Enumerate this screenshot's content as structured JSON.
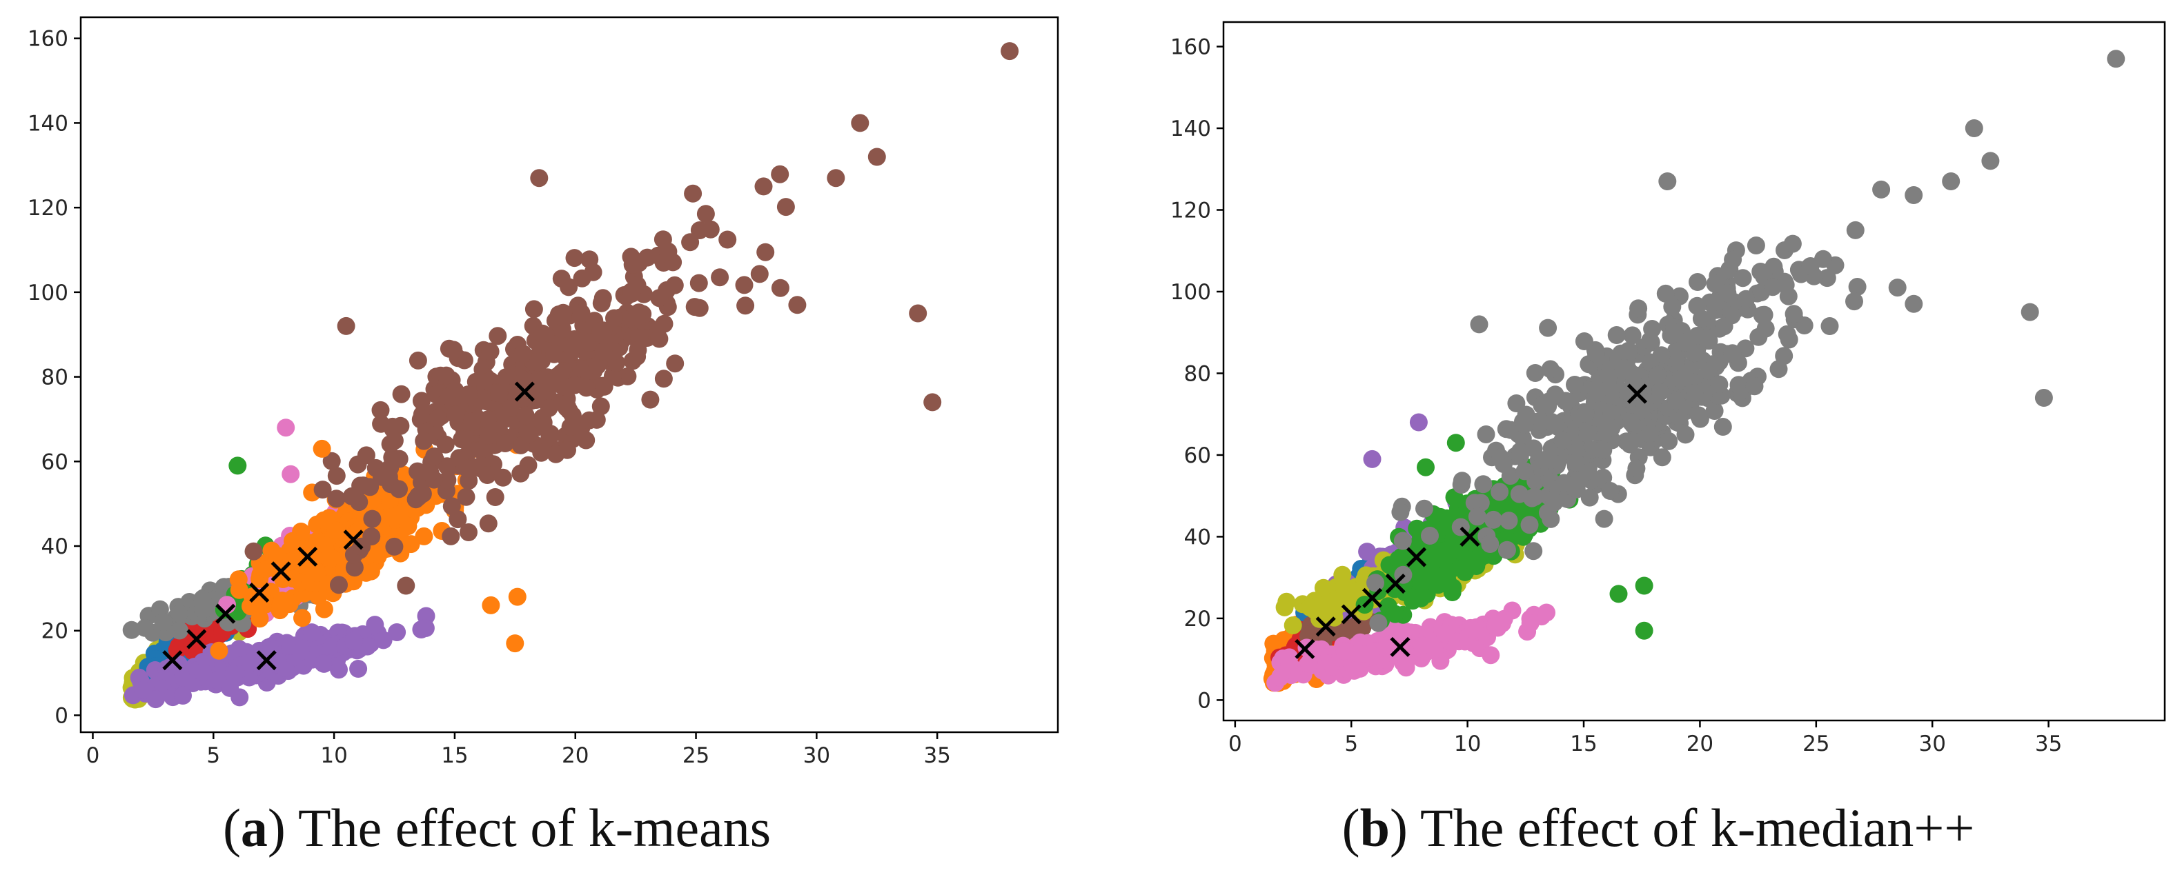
{
  "figure": {
    "captions": [
      {
        "letter": "a",
        "text": "The effect of k-means"
      },
      {
        "letter": "b",
        "text": "The effect of k-median++"
      }
    ]
  },
  "chart_data": [
    {
      "type": "scatter",
      "title": "",
      "xlabel": "",
      "ylabel": "",
      "xlim": [
        -0.5,
        40
      ],
      "ylim": [
        -4,
        165
      ],
      "xticks": [
        0,
        5,
        10,
        15,
        20,
        25,
        30,
        35
      ],
      "yticks": [
        0,
        20,
        40,
        60,
        80,
        100,
        120,
        140,
        160
      ],
      "grid": false,
      "legend": "none",
      "clusters": [
        {
          "name": "cluster-olive",
          "color": "#bcbd22",
          "center": [
            3.3,
            13
          ],
          "spread": [
            1.0,
            4.0
          ],
          "count": 220
        },
        {
          "name": "cluster-blue",
          "color": "#1f77b4",
          "center": [
            4.3,
            18
          ],
          "spread": [
            0.8,
            3.5
          ],
          "count": 120
        },
        {
          "name": "cluster-red",
          "color": "#d62728",
          "center": [
            5.6,
            24
          ],
          "spread": [
            0.9,
            4.0
          ],
          "count": 160
        },
        {
          "name": "cluster-purple",
          "color": "#9467bd",
          "center": [
            7.2,
            13
          ],
          "spread": [
            2.2,
            3.5
          ],
          "count": 280
        },
        {
          "name": "cluster-gray",
          "color": "#7f7f7f",
          "center": [
            6.9,
            29
          ],
          "spread": [
            1.8,
            4.0
          ],
          "count": 260
        },
        {
          "name": "cluster-green",
          "color": "#2ca02c",
          "center": [
            7.8,
            34
          ],
          "spread": [
            1.0,
            5.0
          ],
          "count": 80
        },
        {
          "name": "cluster-pink",
          "color": "#e377c2",
          "center": [
            8.9,
            37
          ],
          "spread": [
            1.2,
            6.0
          ],
          "count": 220
        },
        {
          "name": "cluster-orange",
          "color": "#ff7f0e",
          "center": [
            10.7,
            41.5
          ],
          "spread": [
            1.8,
            8.0
          ],
          "count": 380
        },
        {
          "name": "cluster-brown",
          "color": "#8c564b",
          "center": [
            17.9,
            76.5
          ],
          "spread": [
            3.8,
            17.0
          ],
          "count": 420
        }
      ],
      "outliers": [
        {
          "x": 38.0,
          "y": 157,
          "color": "#8c564b"
        },
        {
          "x": 34.8,
          "y": 74,
          "color": "#8c564b"
        },
        {
          "x": 34.2,
          "y": 95,
          "color": "#8c564b"
        },
        {
          "x": 31.8,
          "y": 140,
          "color": "#8c564b"
        },
        {
          "x": 32.5,
          "y": 132,
          "color": "#8c564b"
        },
        {
          "x": 30.8,
          "y": 127,
          "color": "#8c564b"
        },
        {
          "x": 29.2,
          "y": 97,
          "color": "#8c564b"
        },
        {
          "x": 28.5,
          "y": 101,
          "color": "#8c564b"
        },
        {
          "x": 27.8,
          "y": 125,
          "color": "#8c564b"
        },
        {
          "x": 18.5,
          "y": 127,
          "color": "#8c564b"
        },
        {
          "x": 10.5,
          "y": 92,
          "color": "#8c564b"
        },
        {
          "x": 17.5,
          "y": 17,
          "color": "#ff7f0e"
        },
        {
          "x": 17.6,
          "y": 28,
          "color": "#ff7f0e"
        },
        {
          "x": 16.5,
          "y": 26,
          "color": "#ff7f0e"
        },
        {
          "x": 9.5,
          "y": 63,
          "color": "#ff7f0e"
        },
        {
          "x": 8.0,
          "y": 68,
          "color": "#e377c2"
        },
        {
          "x": 8.2,
          "y": 57,
          "color": "#e377c2"
        },
        {
          "x": 6.0,
          "y": 59,
          "color": "#2ca02c"
        },
        {
          "x": 11.0,
          "y": 11,
          "color": "#9467bd"
        }
      ],
      "centroids": [
        {
          "x": 3.3,
          "y": 13
        },
        {
          "x": 4.3,
          "y": 18
        },
        {
          "x": 5.5,
          "y": 24
        },
        {
          "x": 6.9,
          "y": 29
        },
        {
          "x": 7.2,
          "y": 13
        },
        {
          "x": 7.8,
          "y": 34
        },
        {
          "x": 8.9,
          "y": 37.5
        },
        {
          "x": 10.8,
          "y": 41.5
        },
        {
          "x": 17.9,
          "y": 76.5
        }
      ]
    },
    {
      "type": "scatter",
      "title": "",
      "xlabel": "",
      "ylabel": "",
      "xlim": [
        -0.5,
        40
      ],
      "ylim": [
        -5,
        166
      ],
      "xticks": [
        0,
        5,
        10,
        15,
        20,
        25,
        30,
        35
      ],
      "yticks": [
        0,
        20,
        40,
        60,
        80,
        100,
        120,
        140,
        160
      ],
      "grid": false,
      "legend": "none",
      "clusters": [
        {
          "name": "cluster-orange",
          "color": "#ff7f0e",
          "center": [
            2.9,
            12.5
          ],
          "spread": [
            1.0,
            4.0
          ],
          "count": 200
        },
        {
          "name": "cluster-red",
          "color": "#d62728",
          "center": [
            3.9,
            18
          ],
          "spread": [
            0.8,
            3.5
          ],
          "count": 120
        },
        {
          "name": "cluster-blue",
          "color": "#1f77b4",
          "center": [
            5.1,
            27
          ],
          "spread": [
            0.8,
            3.5
          ],
          "count": 60
        },
        {
          "name": "cluster-brown",
          "color": "#8c564b",
          "center": [
            5.0,
            21
          ],
          "spread": [
            0.9,
            3.5
          ],
          "count": 140
        },
        {
          "name": "cluster-pink",
          "color": "#e377c2",
          "center": [
            7.1,
            13
          ],
          "spread": [
            2.3,
            3.5
          ],
          "count": 280
        },
        {
          "name": "cluster-purple",
          "color": "#9467bd",
          "center": [
            7.7,
            35
          ],
          "spread": [
            1.2,
            5.0
          ],
          "count": 180
        },
        {
          "name": "cluster-olive",
          "color": "#bcbd22",
          "center": [
            6.8,
            28.5
          ],
          "spread": [
            1.8,
            3.5
          ],
          "count": 260
        },
        {
          "name": "cluster-green",
          "color": "#2ca02c",
          "center": [
            10.1,
            40
          ],
          "spread": [
            1.8,
            8.0
          ],
          "count": 380
        },
        {
          "name": "cluster-gray",
          "color": "#7f7f7f",
          "center": [
            17.3,
            75
          ],
          "spread": [
            3.8,
            17.0
          ],
          "count": 420
        }
      ],
      "outliers": [
        {
          "x": 37.9,
          "y": 157,
          "color": "#7f7f7f"
        },
        {
          "x": 34.8,
          "y": 74,
          "color": "#7f7f7f"
        },
        {
          "x": 34.2,
          "y": 95,
          "color": "#7f7f7f"
        },
        {
          "x": 31.8,
          "y": 140,
          "color": "#7f7f7f"
        },
        {
          "x": 32.5,
          "y": 132,
          "color": "#7f7f7f"
        },
        {
          "x": 30.8,
          "y": 127,
          "color": "#7f7f7f"
        },
        {
          "x": 29.2,
          "y": 97,
          "color": "#7f7f7f"
        },
        {
          "x": 28.5,
          "y": 101,
          "color": "#7f7f7f"
        },
        {
          "x": 27.8,
          "y": 125,
          "color": "#7f7f7f"
        },
        {
          "x": 18.6,
          "y": 127,
          "color": "#7f7f7f"
        },
        {
          "x": 10.5,
          "y": 92,
          "color": "#7f7f7f"
        },
        {
          "x": 17.6,
          "y": 17,
          "color": "#2ca02c"
        },
        {
          "x": 17.6,
          "y": 28,
          "color": "#2ca02c"
        },
        {
          "x": 16.5,
          "y": 26,
          "color": "#2ca02c"
        },
        {
          "x": 9.5,
          "y": 63,
          "color": "#2ca02c"
        },
        {
          "x": 7.9,
          "y": 68,
          "color": "#9467bd"
        },
        {
          "x": 8.2,
          "y": 57,
          "color": "#2ca02c"
        },
        {
          "x": 5.9,
          "y": 59,
          "color": "#9467bd"
        },
        {
          "x": 11.0,
          "y": 11,
          "color": "#e377c2"
        }
      ],
      "centroids": [
        {
          "x": 3.0,
          "y": 12.5
        },
        {
          "x": 3.9,
          "y": 18
        },
        {
          "x": 5.0,
          "y": 21
        },
        {
          "x": 5.9,
          "y": 25
        },
        {
          "x": 7.1,
          "y": 13
        },
        {
          "x": 6.9,
          "y": 28.5
        },
        {
          "x": 7.8,
          "y": 35
        },
        {
          "x": 10.1,
          "y": 40
        },
        {
          "x": 17.3,
          "y": 75
        }
      ]
    }
  ]
}
